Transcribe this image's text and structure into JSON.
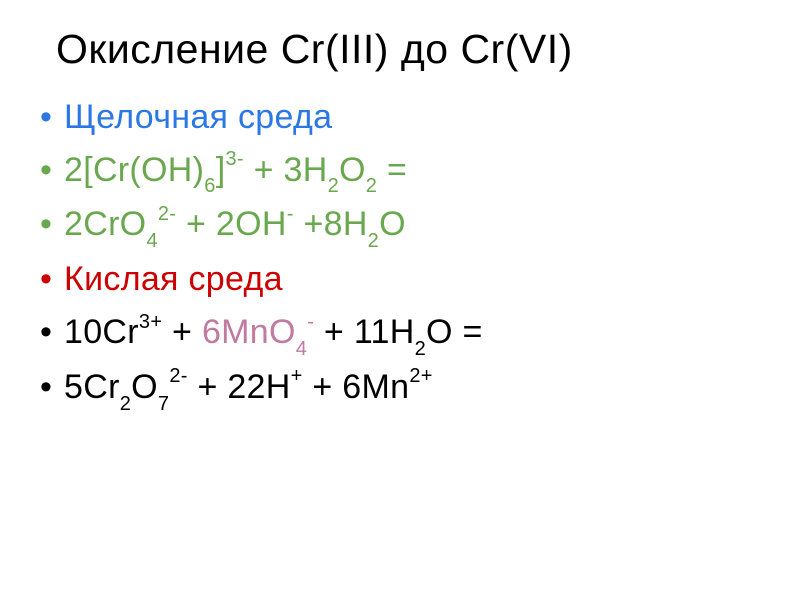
{
  "title": "Окисление Cr(III) до Cr(VI)",
  "colors": {
    "blue": "#2b78e4",
    "green": "#6aa84f",
    "orange": "#e69138",
    "red": "#cc0000",
    "pink": "#c27ba0",
    "black": "#000000"
  },
  "typography": {
    "title_fontsize": 41,
    "body_fontsize": 34,
    "font_family": "Arial"
  },
  "lines": [
    {
      "color": "blue",
      "spans": [
        {
          "t": "Щелочная среда"
        }
      ]
    },
    {
      "color": "green",
      "spans": [
        {
          "t": "2[Cr(OH)"
        },
        {
          "t": "6",
          "k": "sub"
        },
        {
          "t": "]"
        },
        {
          "t": "3-",
          "k": "sup"
        },
        {
          "t": " + 3H"
        },
        {
          "t": "2",
          "k": "sub"
        },
        {
          "t": "O"
        },
        {
          "t": "2",
          "k": "sub"
        },
        {
          "t": " ="
        }
      ]
    },
    {
      "color": "green",
      "spans": [
        {
          "t": "2CrO"
        },
        {
          "t": "4",
          "k": "sub"
        },
        {
          "t": "2-",
          "k": "sup"
        },
        {
          "t": " + 2OH"
        },
        {
          "t": "-",
          "k": "sup"
        },
        {
          "t": " +8H"
        },
        {
          "t": "2",
          "k": "sub"
        },
        {
          "t": "O"
        }
      ]
    },
    {
      "color": "red",
      "spans": [
        {
          "t": "Кислая среда"
        }
      ]
    },
    {
      "color": "black",
      "spans": [
        {
          "t": "10Cr"
        },
        {
          "t": "3+",
          "k": "sup"
        },
        {
          "t": " + "
        },
        {
          "t": "6MnO",
          "c": "pink"
        },
        {
          "t": "4",
          "k": "sub",
          "c": "pink"
        },
        {
          "t": "-",
          "k": "sup",
          "c": "pink"
        },
        {
          "t": " + 11H"
        },
        {
          "t": "2",
          "k": "sub"
        },
        {
          "t": "O ="
        }
      ]
    },
    {
      "color": "black",
      "spans": [
        {
          "t": "5Cr"
        },
        {
          "t": "2",
          "k": "sub"
        },
        {
          "t": "O"
        },
        {
          "t": "7",
          "k": "sub"
        },
        {
          "t": "2-",
          "k": "sup"
        },
        {
          "t": " + 22H"
        },
        {
          "t": "+",
          "k": "sup"
        },
        {
          "t": " + 6Mn"
        },
        {
          "t": "2+",
          "k": "sup"
        }
      ]
    }
  ]
}
